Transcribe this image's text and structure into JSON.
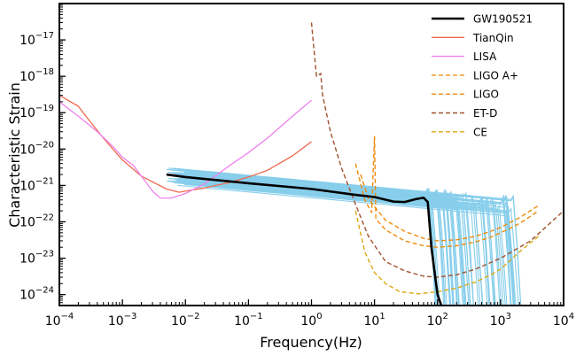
{
  "chart_data": {
    "type": "line",
    "title": "",
    "xlabel": "Frequency(Hz)",
    "ylabel": "Characteristic Strain",
    "x_scale": "log",
    "y_scale": "log",
    "xlim": [
      0.0001,
      10000
    ],
    "ylim": [
      5e-25,
      1e-16
    ],
    "x_ticks": [
      {
        "base": "10",
        "exp": "−4",
        "value": 0.0001
      },
      {
        "base": "10",
        "exp": "−3",
        "value": 0.001
      },
      {
        "base": "10",
        "exp": "−2",
        "value": 0.01
      },
      {
        "base": "10",
        "exp": "−1",
        "value": 0.1
      },
      {
        "base": "10",
        "exp": "0",
        "value": 1
      },
      {
        "base": "10",
        "exp": "1",
        "value": 10
      },
      {
        "base": "10",
        "exp": "2",
        "value": 100
      },
      {
        "base": "10",
        "exp": "3",
        "value": 1000
      },
      {
        "base": "10",
        "exp": "4",
        "value": 10000
      }
    ],
    "y_ticks": [
      {
        "base": "10",
        "exp": "−24",
        "value": 1e-24
      },
      {
        "base": "10",
        "exp": "−23",
        "value": 1e-23
      },
      {
        "base": "10",
        "exp": "−22",
        "value": 1e-22
      },
      {
        "base": "10",
        "exp": "−21",
        "value": 1e-21
      },
      {
        "base": "10",
        "exp": "−20",
        "value": 1e-20
      },
      {
        "base": "10",
        "exp": "−19",
        "value": 1e-19
      },
      {
        "base": "10",
        "exp": "−18",
        "value": 1e-18
      },
      {
        "base": "10",
        "exp": "−17",
        "value": 1e-17
      }
    ],
    "legend_position": "top-right",
    "grid": false,
    "background_waveforms": {
      "color": "#87ceeb",
      "count": 60,
      "x_start_range": [
        0.005,
        0.01
      ],
      "amplitude_range": [
        1e-21,
        3e-21
      ],
      "cutoff_range": [
        60,
        1500
      ]
    },
    "series": [
      {
        "name": "GW190521",
        "color": "#000000",
        "style": "solid",
        "width": 2.6,
        "points": [
          [
            0.005,
            2e-21
          ],
          [
            0.01,
            1.7e-21
          ],
          [
            0.1,
            1.15e-21
          ],
          [
            1,
            8e-22
          ],
          [
            5,
            5.5e-22
          ],
          [
            10,
            4.8e-22
          ],
          [
            20,
            3.6e-22
          ],
          [
            30,
            3.5e-22
          ],
          [
            45,
            4.2e-22
          ],
          [
            60,
            4.6e-22
          ],
          [
            70,
            3.5e-22
          ],
          [
            80,
            2e-23
          ],
          [
            90,
            4e-24
          ],
          [
            100,
            1e-24
          ],
          [
            115,
            5e-25
          ]
        ]
      },
      {
        "name": "TianQin",
        "color": "#ee6a50",
        "style": "solid",
        "width": 1.3,
        "points": [
          [
            0.0001,
            3e-19
          ],
          [
            0.0002,
            1.5e-19
          ],
          [
            0.0003,
            6e-20
          ],
          [
            0.0005,
            2e-20
          ],
          [
            0.001,
            5e-21
          ],
          [
            0.002,
            1.8e-21
          ],
          [
            0.005,
            8e-22
          ],
          [
            0.008,
            6.5e-22
          ],
          [
            0.01,
            7e-22
          ],
          [
            0.02,
            8.5e-22
          ],
          [
            0.05,
            1.2e-21
          ],
          [
            0.1,
            1.7e-21
          ],
          [
            0.2,
            2.6e-21
          ],
          [
            0.5,
            6.5e-21
          ],
          [
            1,
            1.6e-20
          ]
        ]
      },
      {
        "name": "LISA",
        "color": "#ee82ee",
        "style": "solid",
        "width": 1.3,
        "points": [
          [
            0.0001,
            2e-19
          ],
          [
            0.0002,
            8e-20
          ],
          [
            0.0004,
            3e-20
          ],
          [
            0.0007,
            1.2e-20
          ],
          [
            0.001,
            6e-21
          ],
          [
            0.0015,
            3.5e-21
          ],
          [
            0.002,
            1.8e-21
          ],
          [
            0.003,
            7e-22
          ],
          [
            0.004,
            4.5e-22
          ],
          [
            0.006,
            4.5e-22
          ],
          [
            0.01,
            6e-22
          ],
          [
            0.02,
            1.1e-21
          ],
          [
            0.05,
            3.5e-21
          ],
          [
            0.1,
            8e-21
          ],
          [
            0.2,
            2e-20
          ],
          [
            0.5,
            8e-20
          ],
          [
            1,
            2.2e-19
          ]
        ]
      },
      {
        "name": "LIGO A+",
        "color": "#ef8c10",
        "style": "dashed",
        "width": 1.4,
        "points": [
          [
            5,
            4e-21
          ],
          [
            7,
            4e-22
          ],
          [
            9,
            1.8e-22
          ],
          [
            10,
            2.2e-20
          ],
          [
            10.5,
            1.2e-22
          ],
          [
            15,
            6e-23
          ],
          [
            30,
            3e-23
          ],
          [
            60,
            2.2e-23
          ],
          [
            100,
            2e-23
          ],
          [
            200,
            2.2e-23
          ],
          [
            400,
            2.8e-23
          ],
          [
            700,
            3.8e-23
          ],
          [
            1000,
            5e-23
          ],
          [
            2000,
            9e-23
          ],
          [
            4000,
            2e-22
          ]
        ]
      },
      {
        "name": "LIGO",
        "color": "#ef8c10",
        "style": "dashed",
        "width": 1.4,
        "points": [
          [
            6,
            2e-21
          ],
          [
            8,
            4.5e-22
          ],
          [
            10,
            2.6e-22
          ],
          [
            15,
            1.1e-22
          ],
          [
            30,
            5.5e-23
          ],
          [
            60,
            3.5e-23
          ],
          [
            100,
            3e-23
          ],
          [
            200,
            3.2e-23
          ],
          [
            400,
            4e-23
          ],
          [
            700,
            5.5e-23
          ],
          [
            1000,
            7e-23
          ],
          [
            2000,
            1.3e-22
          ],
          [
            4000,
            2.8e-22
          ]
        ]
      },
      {
        "name": "ET-D",
        "color": "#a0522d",
        "style": "dashed",
        "width": 1.4,
        "points": [
          [
            1,
            3e-17
          ],
          [
            1.2,
            1e-18
          ],
          [
            1.4,
            1.2e-18
          ],
          [
            1.5,
            3e-19
          ],
          [
            2,
            3e-20
          ],
          [
            3,
            3e-21
          ],
          [
            5,
            3e-22
          ],
          [
            8,
            4e-23
          ],
          [
            15,
            8e-24
          ],
          [
            30,
            4.5e-24
          ],
          [
            60,
            3.2e-24
          ],
          [
            100,
            3e-24
          ],
          [
            200,
            3.5e-24
          ],
          [
            400,
            5e-24
          ],
          [
            1000,
            1e-23
          ],
          [
            3000,
            3e-23
          ],
          [
            10000,
            2e-22
          ]
        ]
      },
      {
        "name": "CE",
        "color": "#dca814",
        "style": "dashed",
        "width": 1.4,
        "points": [
          [
            5,
            2e-22
          ],
          [
            7,
            1.5e-23
          ],
          [
            10,
            4e-24
          ],
          [
            15,
            2e-24
          ],
          [
            25,
            1.2e-24
          ],
          [
            50,
            1.05e-24
          ],
          [
            100,
            1.2e-24
          ],
          [
            200,
            1.5e-24
          ],
          [
            400,
            2.2e-24
          ],
          [
            700,
            3.5e-24
          ],
          [
            1000,
            5e-24
          ],
          [
            2000,
            1.5e-23
          ],
          [
            4000,
            4e-23
          ]
        ]
      }
    ]
  }
}
